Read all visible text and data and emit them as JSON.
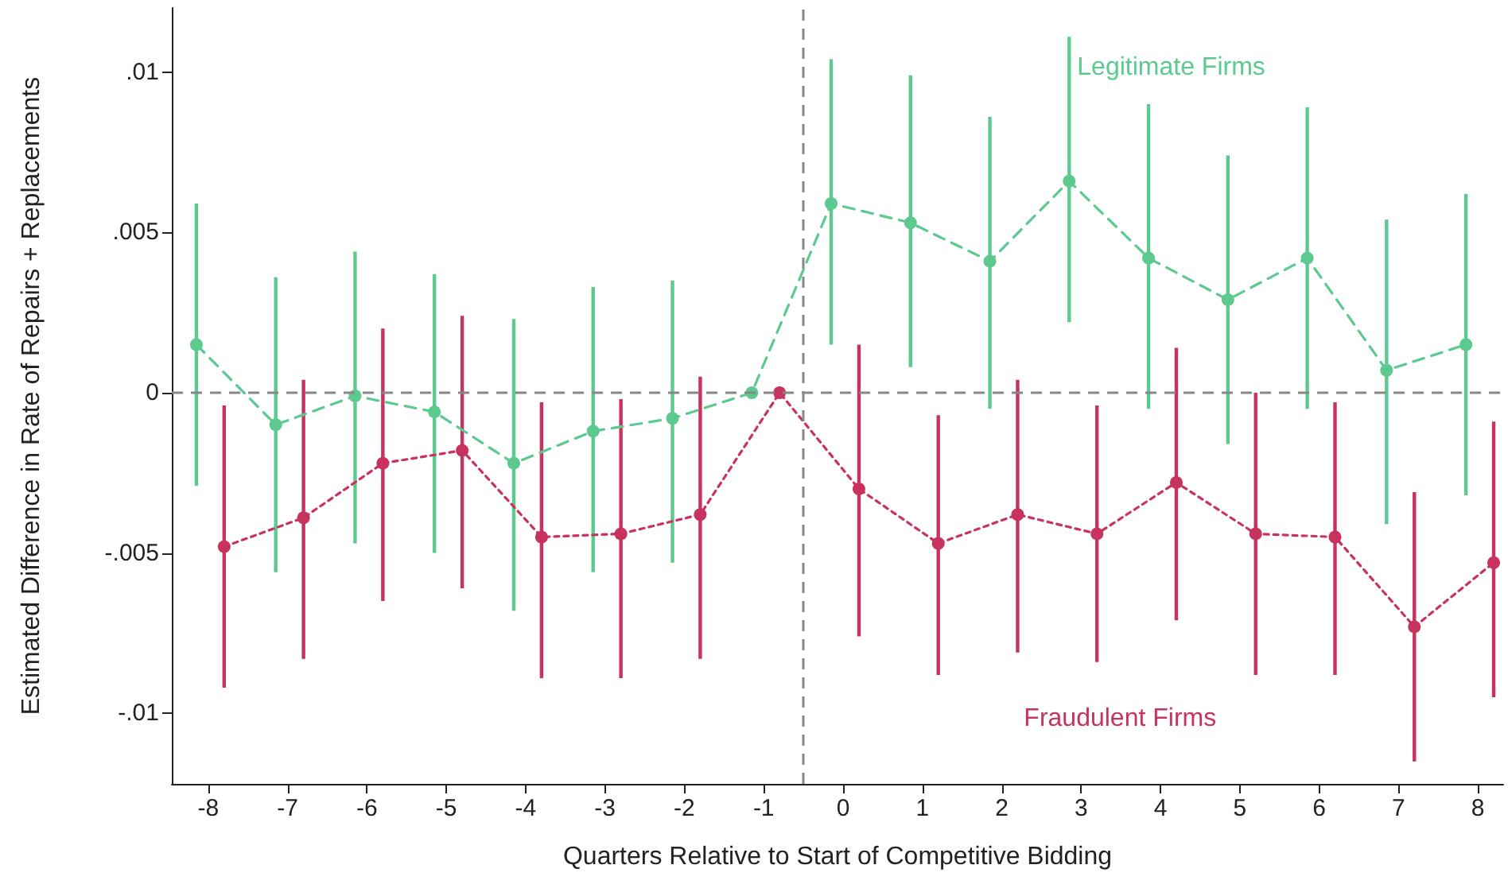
{
  "chart_data": {
    "type": "line",
    "xlabel": "Quarters Relative to Start of Competitive Bidding",
    "ylabel": "Estimated Difference in Rate of Repairs + Replacements",
    "xlim": [
      -8.46,
      8.32
    ],
    "xticks": [
      -8,
      -7,
      -6,
      -5,
      -4,
      -3,
      -2,
      -1,
      0,
      1,
      2,
      3,
      4,
      5,
      6,
      7,
      8
    ],
    "ylim": [
      -0.0122,
      0.012
    ],
    "yticks": [
      {
        "value": -0.01,
        "label": "-.01"
      },
      {
        "value": -0.005,
        "label": "-.005"
      },
      {
        "value": 0,
        "label": "0"
      },
      {
        "value": 0.005,
        "label": ".005"
      },
      {
        "value": 0.01,
        "label": ".01"
      }
    ],
    "grid": false,
    "legend": false,
    "marker": "circle",
    "ref_lines": [
      {
        "axis": "y",
        "value": 0,
        "color": "#888888",
        "line_style": "dashed"
      },
      {
        "axis": "x",
        "value": -0.5,
        "color": "#888888",
        "line_style": "dashed"
      }
    ],
    "series": [
      {
        "name": "Legitimate Firms",
        "color": "#5cc98f",
        "line_style": "dashed",
        "x": [
          -8.15,
          -7.15,
          -6.15,
          -5.15,
          -4.15,
          -3.15,
          -2.15,
          -1.15,
          -0.15,
          0.85,
          1.85,
          2.85,
          3.85,
          4.85,
          5.85,
          6.85,
          7.85
        ],
        "values": [
          0.0015,
          -0.001,
          -0.0001,
          -0.0006,
          -0.0022,
          -0.0012,
          -0.0008,
          0,
          0.0059,
          0.0053,
          0.0041,
          0.0066,
          0.0042,
          0.0029,
          0.0042,
          0.0007,
          0.0015
        ],
        "errors": [
          [
            -0.0029,
            0.0059
          ],
          [
            -0.0056,
            0.0036
          ],
          [
            -0.0047,
            0.0044
          ],
          [
            -0.005,
            0.0037
          ],
          [
            -0.0068,
            0.0023
          ],
          [
            -0.0056,
            0.0033
          ],
          [
            -0.0053,
            0.0035
          ],
          null,
          [
            0.0015,
            0.0104
          ],
          [
            0.0008,
            0.0099
          ],
          [
            -0.0005,
            0.0086
          ],
          [
            0.0022,
            0.0111
          ],
          [
            -0.0005,
            0.009
          ],
          [
            -0.0016,
            0.0074
          ],
          [
            -0.0005,
            0.0089
          ],
          [
            -0.0041,
            0.0054
          ],
          [
            -0.0032,
            0.0062
          ]
        ]
      },
      {
        "name": "Fraudulent Firms",
        "color": "#c8325f",
        "line_style": "dotted",
        "x": [
          -7.8,
          -6.8,
          -5.8,
          -4.8,
          -3.8,
          -2.8,
          -1.8,
          -0.8,
          0.2,
          1.2,
          2.2,
          3.2,
          4.2,
          5.2,
          6.2,
          7.2,
          8.2
        ],
        "values": [
          -0.0048,
          -0.0039,
          -0.0022,
          -0.0018,
          -0.0045,
          -0.0044,
          -0.0038,
          0,
          -0.003,
          -0.0047,
          -0.0038,
          -0.0044,
          -0.0028,
          -0.0044,
          -0.0045,
          -0.0073,
          -0.0053
        ],
        "errors": [
          [
            -0.0092,
            -0.0004
          ],
          [
            -0.0083,
            0.0004
          ],
          [
            -0.0065,
            0.002
          ],
          [
            -0.0061,
            0.0024
          ],
          [
            -0.0089,
            -0.0003
          ],
          [
            -0.0089,
            -0.0002
          ],
          [
            -0.0083,
            0.0005
          ],
          null,
          [
            -0.0076,
            0.0015
          ],
          [
            -0.0088,
            -0.0007
          ],
          [
            -0.0081,
            0.0004
          ],
          [
            -0.0084,
            -0.0004
          ],
          [
            -0.0071,
            0.0014
          ],
          [
            -0.0088,
            0
          ],
          [
            -0.0088,
            -0.0003
          ],
          [
            -0.0115,
            -0.0031
          ],
          [
            -0.0095,
            -0.0009
          ]
        ]
      }
    ]
  }
}
